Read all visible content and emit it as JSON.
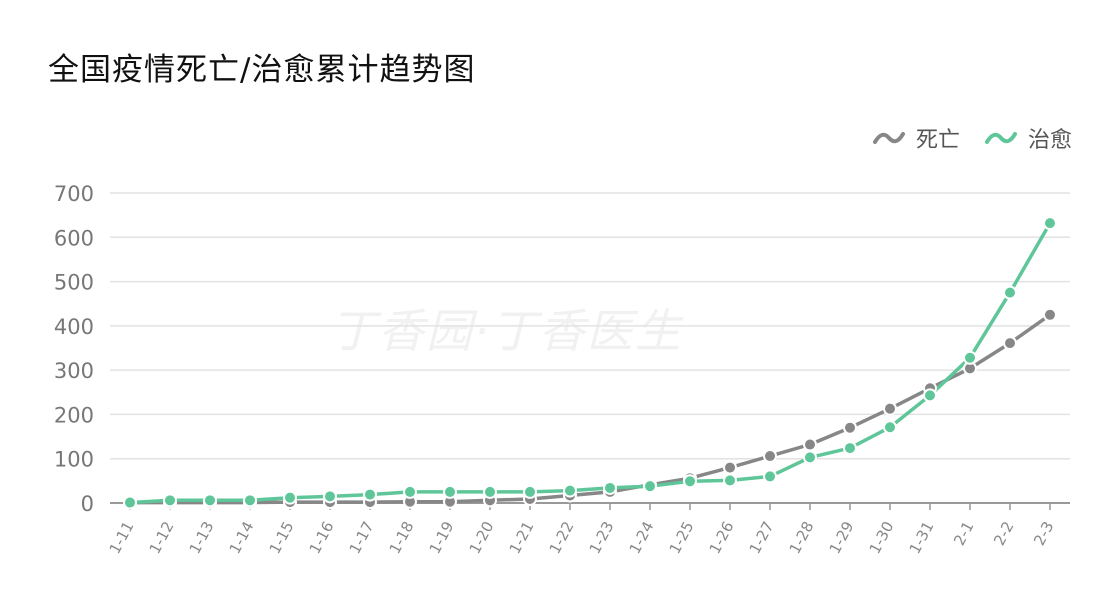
{
  "title": "全国疫情死亡/治愈累计趋势图",
  "watermark": "丁香园·丁香医生",
  "chart_data": {
    "type": "line",
    "title": "全国疫情死亡/治愈累计趋势图",
    "x": [
      "1-11",
      "1-12",
      "1-13",
      "1-14",
      "1-15",
      "1-16",
      "1-17",
      "1-18",
      "1-19",
      "1-20",
      "1-21",
      "1-22",
      "1-23",
      "1-24",
      "1-25",
      "1-26",
      "1-27",
      "1-28",
      "1-29",
      "1-30",
      "1-31",
      "2-1",
      "2-2",
      "2-3"
    ],
    "y_ticks": [
      0,
      100,
      200,
      300,
      400,
      500,
      600,
      700
    ],
    "ylim": [
      0,
      700
    ],
    "grid": true,
    "legend_position": "top-right",
    "series": [
      {
        "name": "死亡",
        "color": "#878787",
        "values": [
          1,
          1,
          1,
          1,
          2,
          2,
          2,
          3,
          3,
          6,
          9,
          17,
          25,
          41,
          56,
          80,
          106,
          132,
          170,
          213,
          259,
          304,
          361,
          425
        ]
      },
      {
        "name": "治愈",
        "color": "#5ec698",
        "values": [
          1,
          6,
          6,
          6,
          12,
          15,
          19,
          25,
          25,
          25,
          25,
          28,
          34,
          38,
          49,
          51,
          60,
          103,
          124,
          171,
          243,
          328,
          475,
          632
        ]
      }
    ]
  }
}
